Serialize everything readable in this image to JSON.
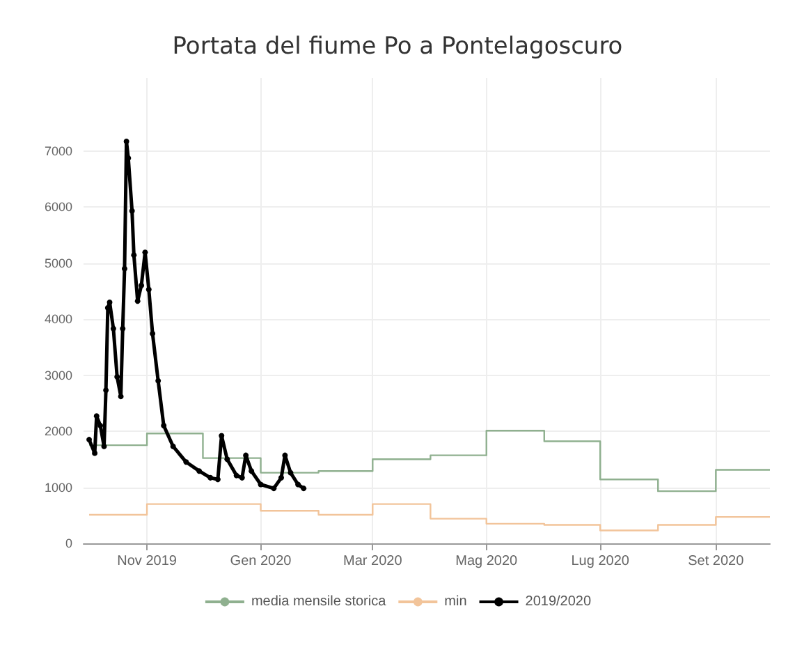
{
  "chart_data": {
    "type": "line",
    "title": "Portata del fiume Po a Pontelagoscuro",
    "xlim": [
      "2019-09-28",
      "2020-09-30"
    ],
    "xticks": [
      {
        "value": "2019-11-01",
        "label": "Nov 2019"
      },
      {
        "value": "2020-01-01",
        "label": "Gen 2020"
      },
      {
        "value": "2020-03-01",
        "label": "Mar 2020"
      },
      {
        "value": "2020-05-01",
        "label": "Mag 2020"
      },
      {
        "value": "2020-07-01",
        "label": "Lug 2020"
      },
      {
        "value": "2020-09-01",
        "label": "Set 2020"
      }
    ],
    "ylim": [
      0,
      8300
    ],
    "yticks": [
      0,
      1000,
      2000,
      3000,
      4000,
      5000,
      6000,
      7000
    ],
    "grid": true,
    "legend": "bottom",
    "series": [
      {
        "name": "media mensile storica",
        "type": "step",
        "color": "#8fb08f",
        "marker": "none",
        "x": [
          "2019-10-01",
          "2019-11-01",
          "2019-12-01",
          "2020-01-01",
          "2020-02-01",
          "2020-03-01",
          "2020-04-01",
          "2020-05-01",
          "2020-06-01",
          "2020-07-01",
          "2020-08-01",
          "2020-09-01",
          "2020-09-30"
        ],
        "values": [
          1750,
          1960,
          1520,
          1260,
          1290,
          1500,
          1570,
          2010,
          1820,
          1140,
          930,
          1310,
          1310
        ]
      },
      {
        "name": "min",
        "type": "step",
        "color": "#f2c49a",
        "marker": "none",
        "x": [
          "2019-10-01",
          "2019-11-01",
          "2019-12-01",
          "2020-01-01",
          "2020-02-01",
          "2020-03-01",
          "2020-04-01",
          "2020-05-01",
          "2020-06-01",
          "2020-07-01",
          "2020-08-01",
          "2020-09-01",
          "2020-09-30"
        ],
        "values": [
          510,
          700,
          700,
          580,
          510,
          700,
          440,
          350,
          330,
          230,
          330,
          470,
          470
        ]
      },
      {
        "name": "2019/2020",
        "color": "#000000",
        "marker": "circle",
        "x": [
          "2019-10-01",
          "2019-10-04",
          "2019-10-05",
          "2019-10-07",
          "2019-10-09",
          "2019-10-10",
          "2019-10-11",
          "2019-10-12",
          "2019-10-14",
          "2019-10-16",
          "2019-10-18",
          "2019-10-19",
          "2019-10-20",
          "2019-10-21",
          "2019-10-22",
          "2019-10-24",
          "2019-10-25",
          "2019-10-27",
          "2019-10-29",
          "2019-10-31",
          "2019-11-02",
          "2019-11-04",
          "2019-11-07",
          "2019-11-10",
          "2019-11-15",
          "2019-11-22",
          "2019-11-29",
          "2019-12-05",
          "2019-12-09",
          "2019-12-11",
          "2019-12-14",
          "2019-12-19",
          "2019-12-22",
          "2019-12-24",
          "2019-12-27",
          "2020-01-01",
          "2020-01-08",
          "2020-01-12",
          "2020-01-14",
          "2020-01-17",
          "2020-01-21",
          "2020-01-24"
        ],
        "values": [
          1850,
          1610,
          2270,
          2100,
          1730,
          2730,
          4200,
          4300,
          3830,
          2970,
          2620,
          3830,
          4900,
          7170,
          6870,
          5930,
          5140,
          4320,
          4600,
          5190,
          4530,
          3740,
          2900,
          2100,
          1730,
          1450,
          1290,
          1170,
          1140,
          1920,
          1500,
          1210,
          1170,
          1570,
          1290,
          1050,
          980,
          1170,
          1570,
          1260,
          1050,
          980
        ]
      }
    ]
  }
}
